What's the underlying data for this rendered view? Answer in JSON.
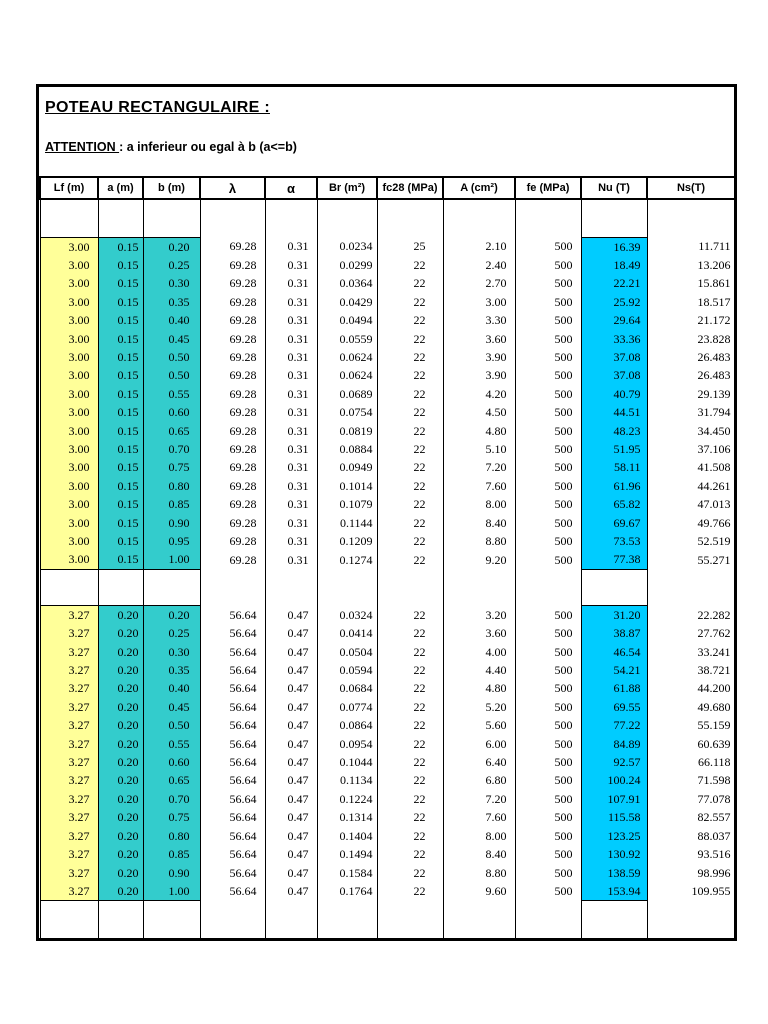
{
  "page": {
    "title": "POTEAU RECTANGULAIRE :",
    "attention_label": "ATTENTION ",
    "attention_text": ": a inferieur ou egal à b (a<=b)"
  },
  "colors": {
    "lf_fill": "#FFFF99",
    "ab_fill": "#33CCCC",
    "nu_fill": "#00CCFF",
    "border": "#000000"
  },
  "table": {
    "columns": [
      "Lf (m)",
      "a (m)",
      "b (m)",
      "λ",
      "α",
      "Br (m²)",
      "fc28 (MPa)",
      "A (cm²)",
      "fe (MPa)",
      "Nu (T)",
      "Ns(T)"
    ],
    "blocks": [
      {
        "rows": [
          [
            "3.00",
            "0.15",
            "0.20",
            "69.28",
            "0.31",
            "0.0234",
            "25",
            "2.10",
            "500",
            "16.39",
            "11.711"
          ],
          [
            "3.00",
            "0.15",
            "0.25",
            "69.28",
            "0.31",
            "0.0299",
            "22",
            "2.40",
            "500",
            "18.49",
            "13.206"
          ],
          [
            "3.00",
            "0.15",
            "0.30",
            "69.28",
            "0.31",
            "0.0364",
            "22",
            "2.70",
            "500",
            "22.21",
            "15.861"
          ],
          [
            "3.00",
            "0.15",
            "0.35",
            "69.28",
            "0.31",
            "0.0429",
            "22",
            "3.00",
            "500",
            "25.92",
            "18.517"
          ],
          [
            "3.00",
            "0.15",
            "0.40",
            "69.28",
            "0.31",
            "0.0494",
            "22",
            "3.30",
            "500",
            "29.64",
            "21.172"
          ],
          [
            "3.00",
            "0.15",
            "0.45",
            "69.28",
            "0.31",
            "0.0559",
            "22",
            "3.60",
            "500",
            "33.36",
            "23.828"
          ],
          [
            "3.00",
            "0.15",
            "0.50",
            "69.28",
            "0.31",
            "0.0624",
            "22",
            "3.90",
            "500",
            "37.08",
            "26.483"
          ],
          [
            "3.00",
            "0.15",
            "0.50",
            "69.28",
            "0.31",
            "0.0624",
            "22",
            "3.90",
            "500",
            "37.08",
            "26.483"
          ],
          [
            "3.00",
            "0.15",
            "0.55",
            "69.28",
            "0.31",
            "0.0689",
            "22",
            "4.20",
            "500",
            "40.79",
            "29.139"
          ],
          [
            "3.00",
            "0.15",
            "0.60",
            "69.28",
            "0.31",
            "0.0754",
            "22",
            "4.50",
            "500",
            "44.51",
            "31.794"
          ],
          [
            "3.00",
            "0.15",
            "0.65",
            "69.28",
            "0.31",
            "0.0819",
            "22",
            "4.80",
            "500",
            "48.23",
            "34.450"
          ],
          [
            "3.00",
            "0.15",
            "0.70",
            "69.28",
            "0.31",
            "0.0884",
            "22",
            "5.10",
            "500",
            "51.95",
            "37.106"
          ],
          [
            "3.00",
            "0.15",
            "0.75",
            "69.28",
            "0.31",
            "0.0949",
            "22",
            "7.20",
            "500",
            "58.11",
            "41.508"
          ],
          [
            "3.00",
            "0.15",
            "0.80",
            "69.28",
            "0.31",
            "0.1014",
            "22",
            "7.60",
            "500",
            "61.96",
            "44.261"
          ],
          [
            "3.00",
            "0.15",
            "0.85",
            "69.28",
            "0.31",
            "0.1079",
            "22",
            "8.00",
            "500",
            "65.82",
            "47.013"
          ],
          [
            "3.00",
            "0.15",
            "0.90",
            "69.28",
            "0.31",
            "0.1144",
            "22",
            "8.40",
            "500",
            "69.67",
            "49.766"
          ],
          [
            "3.00",
            "0.15",
            "0.95",
            "69.28",
            "0.31",
            "0.1209",
            "22",
            "8.80",
            "500",
            "73.53",
            "52.519"
          ],
          [
            "3.00",
            "0.15",
            "1.00",
            "69.28",
            "0.31",
            "0.1274",
            "22",
            "9.20",
            "500",
            "77.38",
            "55.271"
          ]
        ]
      },
      {
        "rows": [
          [
            "3.27",
            "0.20",
            "0.20",
            "56.64",
            "0.47",
            "0.0324",
            "22",
            "3.20",
            "500",
            "31.20",
            "22.282"
          ],
          [
            "3.27",
            "0.20",
            "0.25",
            "56.64",
            "0.47",
            "0.0414",
            "22",
            "3.60",
            "500",
            "38.87",
            "27.762"
          ],
          [
            "3.27",
            "0.20",
            "0.30",
            "56.64",
            "0.47",
            "0.0504",
            "22",
            "4.00",
            "500",
            "46.54",
            "33.241"
          ],
          [
            "3.27",
            "0.20",
            "0.35",
            "56.64",
            "0.47",
            "0.0594",
            "22",
            "4.40",
            "500",
            "54.21",
            "38.721"
          ],
          [
            "3.27",
            "0.20",
            "0.40",
            "56.64",
            "0.47",
            "0.0684",
            "22",
            "4.80",
            "500",
            "61.88",
            "44.200"
          ],
          [
            "3.27",
            "0.20",
            "0.45",
            "56.64",
            "0.47",
            "0.0774",
            "22",
            "5.20",
            "500",
            "69.55",
            "49.680"
          ],
          [
            "3.27",
            "0.20",
            "0.50",
            "56.64",
            "0.47",
            "0.0864",
            "22",
            "5.60",
            "500",
            "77.22",
            "55.159"
          ],
          [
            "3.27",
            "0.20",
            "0.55",
            "56.64",
            "0.47",
            "0.0954",
            "22",
            "6.00",
            "500",
            "84.89",
            "60.639"
          ],
          [
            "3.27",
            "0.20",
            "0.60",
            "56.64",
            "0.47",
            "0.1044",
            "22",
            "6.40",
            "500",
            "92.57",
            "66.118"
          ],
          [
            "3.27",
            "0.20",
            "0.65",
            "56.64",
            "0.47",
            "0.1134",
            "22",
            "6.80",
            "500",
            "100.24",
            "71.598"
          ],
          [
            "3.27",
            "0.20",
            "0.70",
            "56.64",
            "0.47",
            "0.1224",
            "22",
            "7.20",
            "500",
            "107.91",
            "77.078"
          ],
          [
            "3.27",
            "0.20",
            "0.75",
            "56.64",
            "0.47",
            "0.1314",
            "22",
            "7.60",
            "500",
            "115.58",
            "82.557"
          ],
          [
            "3.27",
            "0.20",
            "0.80",
            "56.64",
            "0.47",
            "0.1404",
            "22",
            "8.00",
            "500",
            "123.25",
            "88.037"
          ],
          [
            "3.27",
            "0.20",
            "0.85",
            "56.64",
            "0.47",
            "0.1494",
            "22",
            "8.40",
            "500",
            "130.92",
            "93.516"
          ],
          [
            "3.27",
            "0.20",
            "0.90",
            "56.64",
            "0.47",
            "0.1584",
            "22",
            "8.80",
            "500",
            "138.59",
            "98.996"
          ],
          [
            "3.27",
            "0.20",
            "1.00",
            "56.64",
            "0.47",
            "0.1764",
            "22",
            "9.60",
            "500",
            "153.94",
            "109.955"
          ]
        ]
      }
    ]
  }
}
